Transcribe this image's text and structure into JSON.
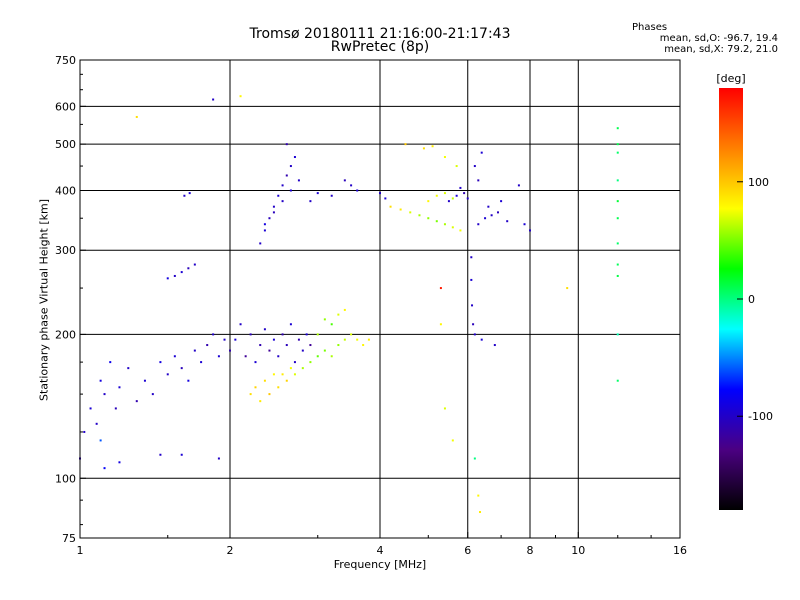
{
  "title": "Tromsø 20180111 21:16:00-21:17:43",
  "subtitle": "RwPretec (8p)",
  "phases": {
    "title": "Phases",
    "o_mode": "mean, sd,O: -96.7, 19.4",
    "x_mode": "mean, sd,X:  79.2, 21.0"
  },
  "colorbar": {
    "label": "[deg]",
    "ticks": [
      100,
      0,
      -100
    ],
    "range": [
      -180,
      180
    ],
    "colors": [
      "#000000",
      "#4b0082",
      "#0000ff",
      "#00ffff",
      "#00ff00",
      "#ffff00",
      "#ff8000",
      "#ff0000"
    ]
  },
  "chart_data": {
    "type": "scatter",
    "title": "Tromsø 20180111 21:16:00-21:17:43",
    "subtitle": "RwPretec (8p)",
    "xlabel": "Frequency [MHz]",
    "ylabel": "Stationary phase Virtual Height [km]",
    "xscale": "log",
    "yscale": "log",
    "xlim": [
      1,
      16
    ],
    "ylim": [
      75,
      750
    ],
    "x_ticks": [
      1,
      2,
      4,
      6,
      8,
      10,
      16
    ],
    "y_ticks": [
      75,
      100,
      200,
      300,
      400,
      500,
      600,
      750
    ],
    "x_grid": [
      2,
      4,
      6,
      8,
      10
    ],
    "y_grid": [
      100,
      200,
      300,
      400,
      500,
      600
    ],
    "series": [
      {
        "name": "",
        "points": [
          [
            1.0,
            110,
            -110
          ],
          [
            1.02,
            125,
            -100
          ],
          [
            1.05,
            140,
            -95
          ],
          [
            1.08,
            130,
            -100
          ],
          [
            1.1,
            160,
            -90
          ],
          [
            1.12,
            150,
            -100
          ],
          [
            1.15,
            175,
            -85
          ],
          [
            1.18,
            140,
            -105
          ],
          [
            1.2,
            155,
            -95
          ],
          [
            1.25,
            170,
            -100
          ],
          [
            1.3,
            145,
            -110
          ],
          [
            1.35,
            160,
            -95
          ],
          [
            1.4,
            150,
            -100
          ],
          [
            1.45,
            175,
            -90
          ],
          [
            1.5,
            165,
            -100
          ],
          [
            1.55,
            180,
            -95
          ],
          [
            1.6,
            170,
            -105
          ],
          [
            1.65,
            160,
            -90
          ],
          [
            1.7,
            185,
            -100
          ],
          [
            1.75,
            175,
            -95
          ],
          [
            1.8,
            190,
            -110
          ],
          [
            1.85,
            200,
            -100
          ],
          [
            1.9,
            180,
            -95
          ],
          [
            1.95,
            195,
            -100
          ],
          [
            1.12,
            105,
            -80
          ],
          [
            1.2,
            108,
            -90
          ],
          [
            1.45,
            112,
            -100
          ],
          [
            1.6,
            112,
            -95
          ],
          [
            1.9,
            110,
            -100
          ],
          [
            1.1,
            120,
            -60
          ],
          [
            1.55,
            265,
            -100
          ],
          [
            1.6,
            270,
            -95
          ],
          [
            1.65,
            275,
            -105
          ],
          [
            1.7,
            280,
            -100
          ],
          [
            1.5,
            262,
            -90
          ],
          [
            1.62,
            390,
            -100
          ],
          [
            1.66,
            395,
            -95
          ],
          [
            1.85,
            620,
            -100
          ],
          [
            2.1,
            630,
            80
          ],
          [
            1.3,
            570,
            90
          ],
          [
            2.0,
            185,
            -110
          ],
          [
            2.05,
            195,
            -95
          ],
          [
            2.1,
            210,
            -100
          ],
          [
            2.15,
            180,
            -120
          ],
          [
            2.2,
            200,
            -105
          ],
          [
            2.25,
            175,
            -95
          ],
          [
            2.3,
            190,
            -110
          ],
          [
            2.35,
            205,
            -100
          ],
          [
            2.4,
            185,
            -120
          ],
          [
            2.45,
            195,
            -95
          ],
          [
            2.5,
            180,
            -100
          ],
          [
            2.55,
            200,
            -110
          ],
          [
            2.6,
            190,
            -105
          ],
          [
            2.65,
            210,
            -95
          ],
          [
            2.7,
            175,
            -100
          ],
          [
            2.75,
            195,
            -110
          ],
          [
            2.8,
            185,
            -100
          ],
          [
            2.85,
            200,
            -95
          ],
          [
            2.9,
            190,
            -120
          ],
          [
            2.2,
            150,
            90
          ],
          [
            2.25,
            155,
            95
          ],
          [
            2.3,
            145,
            85
          ],
          [
            2.35,
            160,
            90
          ],
          [
            2.4,
            150,
            100
          ],
          [
            2.45,
            165,
            80
          ],
          [
            2.5,
            155,
            90
          ],
          [
            2.55,
            165,
            85
          ],
          [
            2.6,
            160,
            95
          ],
          [
            2.65,
            170,
            75
          ],
          [
            2.7,
            165,
            70
          ],
          [
            2.8,
            170,
            60
          ],
          [
            2.9,
            175,
            55
          ],
          [
            3.0,
            180,
            45
          ],
          [
            3.1,
            185,
            50
          ],
          [
            3.2,
            180,
            60
          ],
          [
            3.3,
            190,
            55
          ],
          [
            3.4,
            195,
            65
          ],
          [
            3.5,
            200,
            70
          ],
          [
            3.6,
            195,
            75
          ],
          [
            3.7,
            190,
            80
          ],
          [
            3.8,
            195,
            85
          ],
          [
            3.0,
            200,
            60
          ],
          [
            3.1,
            215,
            55
          ],
          [
            3.2,
            210,
            40
          ],
          [
            3.3,
            220,
            70
          ],
          [
            3.4,
            225,
            80
          ],
          [
            2.3,
            310,
            -100
          ],
          [
            2.35,
            330,
            -95
          ],
          [
            2.4,
            350,
            -105
          ],
          [
            2.45,
            370,
            -100
          ],
          [
            2.5,
            390,
            -95
          ],
          [
            2.55,
            410,
            -100
          ],
          [
            2.6,
            430,
            -110
          ],
          [
            2.65,
            450,
            -100
          ],
          [
            2.7,
            470,
            -95
          ],
          [
            2.35,
            340,
            -90
          ],
          [
            2.45,
            360,
            -105
          ],
          [
            2.55,
            380,
            -100
          ],
          [
            2.65,
            400,
            -95
          ],
          [
            2.75,
            420,
            -100
          ],
          [
            2.6,
            500,
            -110
          ],
          [
            2.9,
            380,
            -100
          ],
          [
            3.0,
            395,
            -95
          ],
          [
            3.2,
            390,
            -100
          ],
          [
            3.4,
            420,
            -105
          ],
          [
            3.5,
            410,
            -100
          ],
          [
            3.6,
            400,
            -95
          ],
          [
            4.0,
            395,
            -100
          ],
          [
            4.1,
            385,
            -95
          ],
          [
            4.2,
            370,
            90
          ],
          [
            4.4,
            365,
            85
          ],
          [
            4.6,
            360,
            70
          ],
          [
            4.8,
            355,
            60
          ],
          [
            5.0,
            350,
            55
          ],
          [
            5.2,
            345,
            50
          ],
          [
            5.4,
            340,
            60
          ],
          [
            5.6,
            335,
            70
          ],
          [
            5.8,
            330,
            75
          ],
          [
            5.0,
            380,
            80
          ],
          [
            5.2,
            390,
            75
          ],
          [
            5.4,
            395,
            70
          ],
          [
            5.6,
            385,
            65
          ],
          [
            4.9,
            490,
            90
          ],
          [
            5.1,
            495,
            85
          ],
          [
            5.4,
            470,
            75
          ],
          [
            5.7,
            450,
            70
          ],
          [
            5.5,
            380,
            -100
          ],
          [
            5.7,
            390,
            -95
          ],
          [
            5.9,
            395,
            -110
          ],
          [
            6.0,
            385,
            -100
          ],
          [
            5.8,
            405,
            -100
          ],
          [
            6.3,
            340,
            -100
          ],
          [
            6.5,
            350,
            -95
          ],
          [
            6.7,
            355,
            -100
          ],
          [
            6.9,
            360,
            -105
          ],
          [
            6.6,
            370,
            -100
          ],
          [
            7.0,
            380,
            -95
          ],
          [
            7.2,
            345,
            -100
          ],
          [
            6.2,
            450,
            -100
          ],
          [
            6.4,
            480,
            -95
          ],
          [
            6.3,
            420,
            -105
          ],
          [
            6.1,
            290,
            -100
          ],
          [
            6.1,
            260,
            -95
          ],
          [
            6.12,
            230,
            -100
          ],
          [
            6.15,
            210,
            -105
          ],
          [
            6.2,
            200,
            -100
          ],
          [
            6.4,
            195,
            -95
          ],
          [
            6.8,
            190,
            -100
          ],
          [
            8.0,
            330,
            -100
          ],
          [
            7.8,
            340,
            -95
          ],
          [
            7.6,
            410,
            -100
          ],
          [
            6.3,
            92,
            80
          ],
          [
            6.35,
            85,
            85
          ],
          [
            5.3,
            210,
            80
          ],
          [
            5.4,
            140,
            70
          ],
          [
            5.6,
            120,
            75
          ],
          [
            6.2,
            110,
            0
          ],
          [
            12.0,
            500,
            10
          ],
          [
            12.0,
            480,
            5
          ],
          [
            12.0,
            420,
            0
          ],
          [
            12.0,
            380,
            15
          ],
          [
            12.0,
            350,
            10
          ],
          [
            12.0,
            310,
            5
          ],
          [
            12.0,
            280,
            8
          ],
          [
            12.0,
            265,
            12
          ],
          [
            12.0,
            200,
            -10
          ],
          [
            12.0,
            160,
            5
          ],
          [
            12.0,
            540,
            10
          ],
          [
            9.5,
            250,
            90
          ],
          [
            4.5,
            500,
            100
          ],
          [
            5.3,
            250,
            170
          ]
        ]
      }
    ]
  }
}
